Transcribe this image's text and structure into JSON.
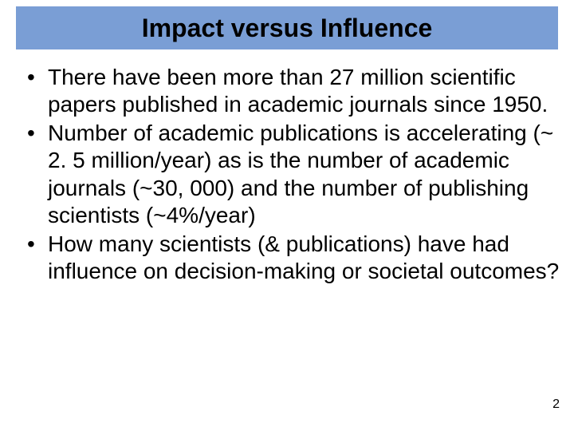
{
  "slide": {
    "title": "Impact versus Influence",
    "title_bar_color": "#7a9ed5",
    "title_text_color": "#000000",
    "title_fontsize": 32,
    "background_color": "#ffffff",
    "bullets": [
      "There have been more than 27 million scientific papers published in academic journals since 1950.",
      "Number of academic publications is accelerating (~ 2. 5 million/year) as is the number of academic journals (~30, 000) and the number of publishing scientists (~4%/year)",
      "How many scientists (& publications) have had influence on decision-making or societal outcomes?"
    ],
    "body_fontsize": 28,
    "body_text_color": "#000000",
    "page_number": "2"
  }
}
